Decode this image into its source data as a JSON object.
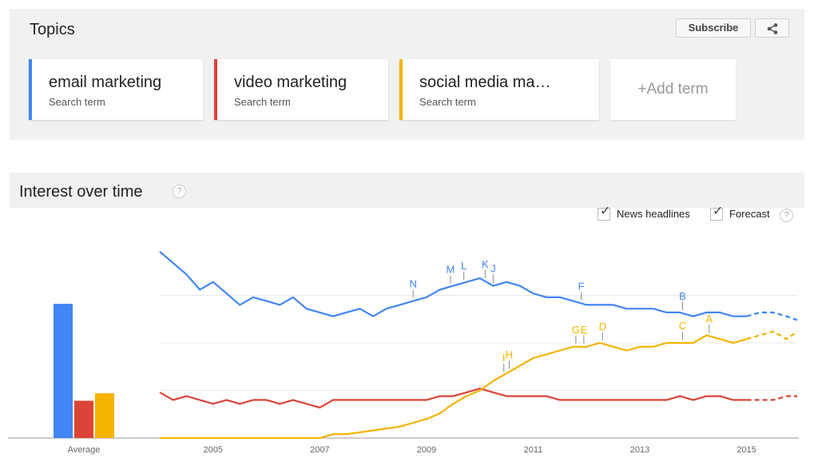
{
  "topics": {
    "title": "Topics",
    "subscribe_label": "Subscribe",
    "share_icon": "share-icon",
    "terms": [
      {
        "name": "email marketing",
        "sub": "Search term",
        "color": "#4285f4"
      },
      {
        "name": "video marketing",
        "sub": "Search term",
        "color": "#db4437"
      },
      {
        "name": "social media ma…",
        "sub": "Search term",
        "color": "#f4b400"
      }
    ],
    "add_term_label": "+Add term"
  },
  "interest": {
    "title": "Interest over time",
    "help_glyph": "?",
    "news_headlines_label": "News headlines",
    "news_headlines_checked": true,
    "forecast_label": "Forecast",
    "forecast_checked": true
  },
  "chart_data": {
    "type": "line",
    "x_tick_labels": [
      "2005",
      "2007",
      "2009",
      "2011",
      "2013",
      "2015"
    ],
    "x_ticks": [
      2005,
      2007,
      2009,
      2011,
      2013,
      2015
    ],
    "x_range": [
      2004,
      2015.95
    ],
    "y_range": [
      0,
      100
    ],
    "grid": true,
    "average": {
      "label": "Average",
      "values": [
        72,
        20,
        24
      ]
    },
    "series": [
      {
        "color": "#4285f4",
        "points": [
          [
            2004.0,
            98
          ],
          [
            2004.25,
            92
          ],
          [
            2004.5,
            86
          ],
          [
            2004.75,
            78
          ],
          [
            2005.0,
            82
          ],
          [
            2005.25,
            76
          ],
          [
            2005.5,
            70
          ],
          [
            2005.75,
            74
          ],
          [
            2006.0,
            72
          ],
          [
            2006.25,
            70
          ],
          [
            2006.5,
            74
          ],
          [
            2006.75,
            68
          ],
          [
            2007.0,
            66
          ],
          [
            2007.25,
            64
          ],
          [
            2007.5,
            66
          ],
          [
            2007.75,
            68
          ],
          [
            2008.0,
            64
          ],
          [
            2008.25,
            68
          ],
          [
            2008.5,
            70
          ],
          [
            2008.75,
            72
          ],
          [
            2009.0,
            74
          ],
          [
            2009.25,
            78
          ],
          [
            2009.5,
            80
          ],
          [
            2009.75,
            82
          ],
          [
            2010.0,
            84
          ],
          [
            2010.25,
            80
          ],
          [
            2010.5,
            82
          ],
          [
            2010.75,
            80
          ],
          [
            2011.0,
            76
          ],
          [
            2011.25,
            74
          ],
          [
            2011.5,
            74
          ],
          [
            2011.75,
            72
          ],
          [
            2012.0,
            70
          ],
          [
            2012.25,
            70
          ],
          [
            2012.5,
            70
          ],
          [
            2012.75,
            68
          ],
          [
            2013.0,
            68
          ],
          [
            2013.25,
            68
          ],
          [
            2013.5,
            66
          ],
          [
            2013.75,
            66
          ],
          [
            2014.0,
            64
          ],
          [
            2014.25,
            66
          ],
          [
            2014.5,
            66
          ],
          [
            2014.75,
            64
          ],
          [
            2015.0,
            64
          ]
        ],
        "forecast": [
          [
            2015.0,
            64
          ],
          [
            2015.25,
            66
          ],
          [
            2015.5,
            66
          ],
          [
            2015.75,
            64
          ],
          [
            2015.95,
            62
          ]
        ]
      },
      {
        "color": "#db4437",
        "points": [
          [
            2004.0,
            24
          ],
          [
            2004.25,
            20
          ],
          [
            2004.5,
            22
          ],
          [
            2004.75,
            20
          ],
          [
            2005.0,
            18
          ],
          [
            2005.25,
            20
          ],
          [
            2005.5,
            18
          ],
          [
            2005.75,
            20
          ],
          [
            2006.0,
            20
          ],
          [
            2006.25,
            18
          ],
          [
            2006.5,
            20
          ],
          [
            2006.75,
            18
          ],
          [
            2007.0,
            16
          ],
          [
            2007.25,
            20
          ],
          [
            2007.5,
            20
          ],
          [
            2007.75,
            20
          ],
          [
            2008.0,
            20
          ],
          [
            2008.25,
            20
          ],
          [
            2008.5,
            20
          ],
          [
            2008.75,
            20
          ],
          [
            2009.0,
            20
          ],
          [
            2009.25,
            22
          ],
          [
            2009.5,
            22
          ],
          [
            2009.75,
            24
          ],
          [
            2010.0,
            26
          ],
          [
            2010.25,
            24
          ],
          [
            2010.5,
            22
          ],
          [
            2010.75,
            22
          ],
          [
            2011.0,
            22
          ],
          [
            2011.25,
            22
          ],
          [
            2011.5,
            20
          ],
          [
            2011.75,
            20
          ],
          [
            2012.0,
            20
          ],
          [
            2012.25,
            20
          ],
          [
            2012.5,
            20
          ],
          [
            2012.75,
            20
          ],
          [
            2013.0,
            20
          ],
          [
            2013.25,
            20
          ],
          [
            2013.5,
            20
          ],
          [
            2013.75,
            22
          ],
          [
            2014.0,
            20
          ],
          [
            2014.25,
            22
          ],
          [
            2014.5,
            22
          ],
          [
            2014.75,
            20
          ],
          [
            2015.0,
            20
          ]
        ],
        "forecast": [
          [
            2015.0,
            20
          ],
          [
            2015.25,
            20
          ],
          [
            2015.5,
            20
          ],
          [
            2015.75,
            22
          ],
          [
            2015.95,
            22
          ]
        ]
      },
      {
        "color": "#f4b400",
        "points": [
          [
            2004.0,
            0
          ],
          [
            2004.5,
            0
          ],
          [
            2005.0,
            0
          ],
          [
            2005.5,
            0
          ],
          [
            2006.0,
            0
          ],
          [
            2006.5,
            0
          ],
          [
            2007.0,
            0
          ],
          [
            2007.25,
            2
          ],
          [
            2007.5,
            2
          ],
          [
            2007.75,
            3
          ],
          [
            2008.0,
            4
          ],
          [
            2008.25,
            5
          ],
          [
            2008.5,
            6
          ],
          [
            2008.75,
            8
          ],
          [
            2009.0,
            10
          ],
          [
            2009.25,
            13
          ],
          [
            2009.5,
            18
          ],
          [
            2009.75,
            22
          ],
          [
            2010.0,
            25
          ],
          [
            2010.25,
            30
          ],
          [
            2010.5,
            34
          ],
          [
            2010.75,
            38
          ],
          [
            2011.0,
            42
          ],
          [
            2011.25,
            44
          ],
          [
            2011.5,
            46
          ],
          [
            2011.75,
            48
          ],
          [
            2012.0,
            48
          ],
          [
            2012.25,
            50
          ],
          [
            2012.5,
            48
          ],
          [
            2012.75,
            46
          ],
          [
            2013.0,
            48
          ],
          [
            2013.25,
            48
          ],
          [
            2013.5,
            50
          ],
          [
            2013.75,
            50
          ],
          [
            2014.0,
            50
          ],
          [
            2014.25,
            54
          ],
          [
            2014.5,
            52
          ],
          [
            2014.75,
            50
          ],
          [
            2015.0,
            52
          ]
        ],
        "forecast": [
          [
            2015.0,
            52
          ],
          [
            2015.25,
            54
          ],
          [
            2015.5,
            56
          ],
          [
            2015.75,
            52
          ],
          [
            2015.95,
            56
          ]
        ]
      }
    ],
    "annotations": [
      {
        "label": "N",
        "series": 0,
        "x": 2008.75
      },
      {
        "label": "M",
        "series": 0,
        "x": 2009.45
      },
      {
        "label": "L",
        "series": 0,
        "x": 2009.7
      },
      {
        "label": "K",
        "series": 0,
        "x": 2010.1
      },
      {
        "label": "J",
        "series": 0,
        "x": 2010.25
      },
      {
        "label": "F",
        "series": 0,
        "x": 2011.9
      },
      {
        "label": "B",
        "series": 0,
        "x": 2013.8
      },
      {
        "label": "I",
        "series": 2,
        "x": 2010.45
      },
      {
        "label": "H",
        "series": 2,
        "x": 2010.55
      },
      {
        "label": "G",
        "series": 2,
        "x": 2011.8
      },
      {
        "label": "E",
        "series": 2,
        "x": 2011.95
      },
      {
        "label": "D",
        "series": 2,
        "x": 2012.3
      },
      {
        "label": "C",
        "series": 2,
        "x": 2013.8
      },
      {
        "label": "A",
        "series": 2,
        "x": 2014.3
      }
    ]
  }
}
